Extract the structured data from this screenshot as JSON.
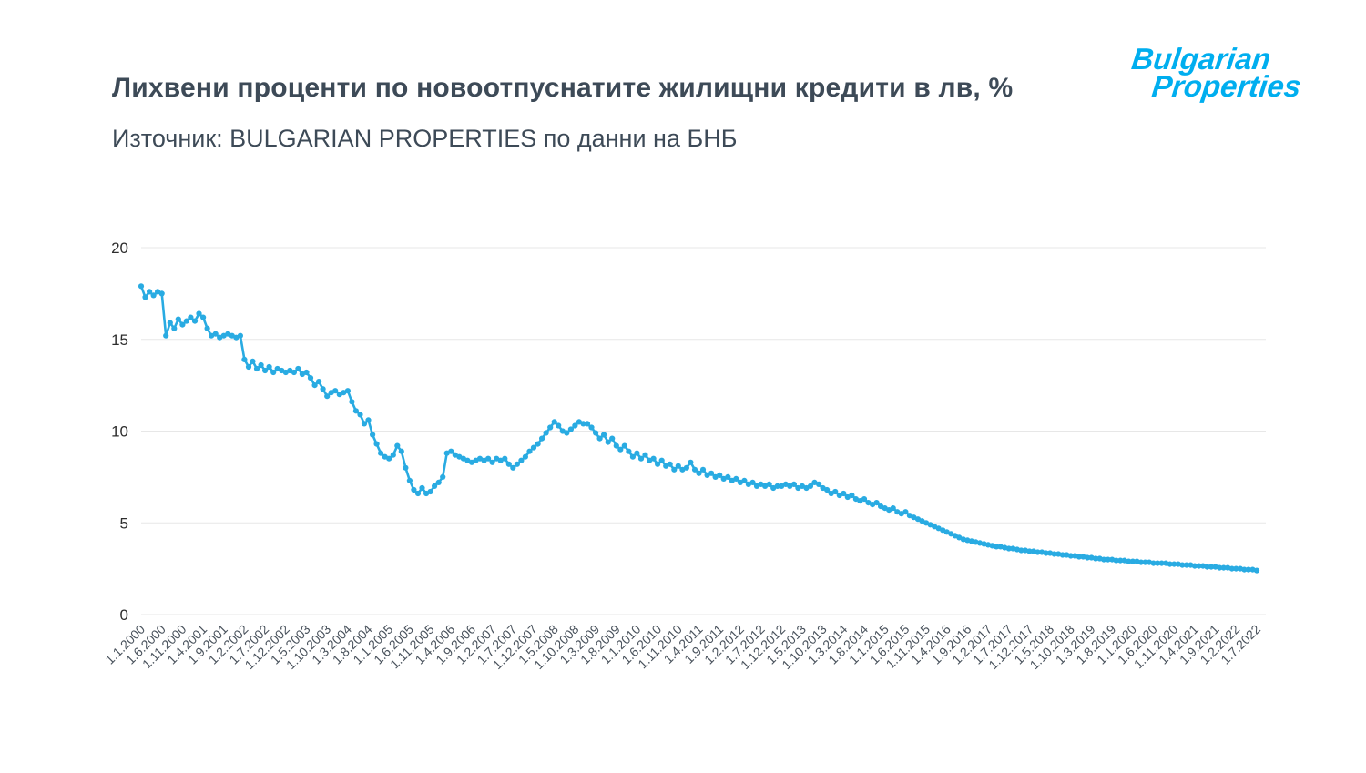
{
  "header": {
    "title": "Лихвени проценти по новоотпуснатите жилищни кредити в лв, %",
    "subtitle": "Източник: BULGARIAN PROPERTIES по данни на БНБ",
    "logo_line1": "Bulgarian",
    "logo_line2": "Properties"
  },
  "chart_data": {
    "type": "line",
    "title": "Лихвени проценти по новоотпуснатите жилищни кредити в лв, %",
    "xlabel": "",
    "ylabel": "",
    "ylim": [
      0,
      20
    ],
    "yticks": [
      0,
      5,
      10,
      15,
      20
    ],
    "grid": true,
    "legend": "none",
    "line_color": "#29abe2",
    "label_every": 5,
    "x_labels": [
      "1.1.2000",
      "1.6.2000",
      "1.11.2000",
      "1.4.2001",
      "1.9.2001",
      "1.2.2002",
      "1.7.2002",
      "1.12.2002",
      "1.5.2003",
      "1.10.2003",
      "1.3.2004",
      "1.8.2004",
      "1.1.2005",
      "1.6.2005",
      "1.11.2005",
      "1.4.2006",
      "1.9.2006",
      "1.2.2007",
      "1.7.2007",
      "1.12.2007",
      "1.5.2008",
      "1.10.2008",
      "1.3.2009",
      "1.8.2009",
      "1.1.2010",
      "1.6.2010",
      "1.11.2010",
      "1.4.2011",
      "1.9.2011",
      "1.2.2012",
      "1.7.2012",
      "1.12.2012",
      "1.5.2013",
      "1.10.2013",
      "1.3.2014",
      "1.8.2014",
      "1.1.2015",
      "1.6.2015",
      "1.11.2015",
      "1.4.2016",
      "1.9.2016",
      "1.2.2017",
      "1.7.2017",
      "1.12.2017",
      "1.5.2018",
      "1.10.2018",
      "1.3.2019",
      "1.8.2019",
      "1.1.2020",
      "1.6.2020",
      "1.11.2020",
      "1.4.2021",
      "1.9.2021",
      "1.2.2022",
      "1.7.2022"
    ],
    "values": [
      17.9,
      17.3,
      17.6,
      17.4,
      17.6,
      17.5,
      15.2,
      15.9,
      15.6,
      16.1,
      15.8,
      16.0,
      16.2,
      16.0,
      16.4,
      16.2,
      15.6,
      15.2,
      15.3,
      15.1,
      15.2,
      15.3,
      15.2,
      15.1,
      15.2,
      13.9,
      13.5,
      13.8,
      13.4,
      13.6,
      13.3,
      13.5,
      13.2,
      13.4,
      13.3,
      13.2,
      13.3,
      13.2,
      13.4,
      13.1,
      13.2,
      12.9,
      12.5,
      12.7,
      12.3,
      11.9,
      12.1,
      12.2,
      12.0,
      12.1,
      12.2,
      11.6,
      11.1,
      10.9,
      10.4,
      10.6,
      9.8,
      9.3,
      8.8,
      8.6,
      8.5,
      8.7,
      9.2,
      8.9,
      8.0,
      7.3,
      6.8,
      6.6,
      6.9,
      6.6,
      6.7,
      7.0,
      7.2,
      7.5,
      8.8,
      8.9,
      8.7,
      8.6,
      8.5,
      8.4,
      8.3,
      8.4,
      8.5,
      8.4,
      8.5,
      8.3,
      8.5,
      8.4,
      8.5,
      8.2,
      8.0,
      8.2,
      8.4,
      8.6,
      8.9,
      9.1,
      9.3,
      9.6,
      9.9,
      10.2,
      10.5,
      10.3,
      10.0,
      9.9,
      10.1,
      10.3,
      10.5,
      10.4,
      10.4,
      10.2,
      9.9,
      9.6,
      9.8,
      9.4,
      9.6,
      9.2,
      9.0,
      9.2,
      8.9,
      8.6,
      8.8,
      8.5,
      8.7,
      8.4,
      8.5,
      8.2,
      8.4,
      8.1,
      8.2,
      7.9,
      8.1,
      7.9,
      8.0,
      8.3,
      7.9,
      7.7,
      7.9,
      7.6,
      7.7,
      7.5,
      7.6,
      7.4,
      7.5,
      7.3,
      7.4,
      7.2,
      7.3,
      7.1,
      7.2,
      7.0,
      7.1,
      7.0,
      7.1,
      6.9,
      7.0,
      7.0,
      7.1,
      7.0,
      7.1,
      6.9,
      7.0,
      6.9,
      7.0,
      7.2,
      7.1,
      6.9,
      6.8,
      6.6,
      6.7,
      6.5,
      6.6,
      6.4,
      6.5,
      6.3,
      6.2,
      6.3,
      6.1,
      6.0,
      6.1,
      5.9,
      5.8,
      5.7,
      5.8,
      5.6,
      5.5,
      5.6,
      5.4,
      5.3,
      5.2,
      5.1,
      5.0,
      4.9,
      4.8,
      4.7,
      4.6,
      4.5,
      4.4,
      4.3,
      4.2,
      4.1,
      4.05,
      4.0,
      3.95,
      3.9,
      3.85,
      3.8,
      3.75,
      3.7,
      3.7,
      3.65,
      3.6,
      3.6,
      3.55,
      3.5,
      3.5,
      3.45,
      3.45,
      3.4,
      3.4,
      3.35,
      3.35,
      3.3,
      3.3,
      3.25,
      3.25,
      3.2,
      3.2,
      3.15,
      3.15,
      3.1,
      3.1,
      3.05,
      3.05,
      3.0,
      3.0,
      3.0,
      2.95,
      2.95,
      2.95,
      2.9,
      2.9,
      2.9,
      2.85,
      2.85,
      2.85,
      2.8,
      2.8,
      2.8,
      2.8,
      2.75,
      2.75,
      2.75,
      2.7,
      2.7,
      2.7,
      2.65,
      2.65,
      2.65,
      2.6,
      2.6,
      2.6,
      2.55,
      2.55,
      2.55,
      2.5,
      2.5,
      2.5,
      2.45,
      2.45,
      2.45,
      2.4
    ]
  }
}
